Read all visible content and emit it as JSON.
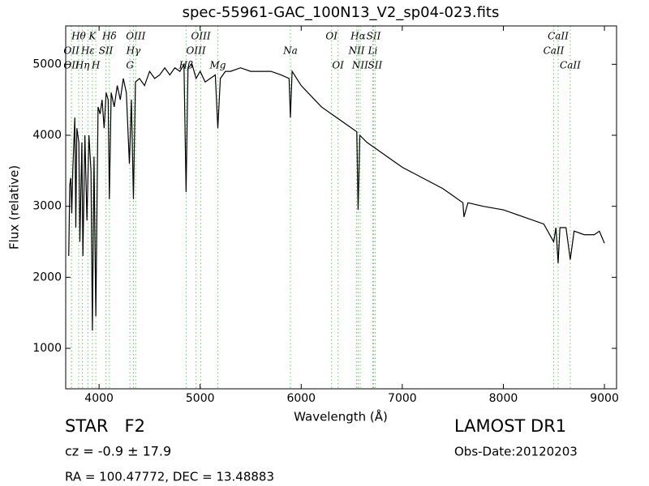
{
  "chart_data": {
    "type": "line",
    "title": "spec-55961-GAC_100N13_V2_sp04-023.fits",
    "xlabel": "Wavelength (Å)",
    "ylabel": "Flux (relative)",
    "xlim": [
      3670,
      9120
    ],
    "ylim": [
      430,
      5540
    ],
    "xticks": [
      4000,
      5000,
      6000,
      7000,
      8000,
      9000
    ],
    "yticks": [
      1000,
      2000,
      3000,
      4000,
      5000
    ],
    "grid": false,
    "x": [
      3700,
      3710,
      3720,
      3730,
      3740,
      3760,
      3770,
      3780,
      3800,
      3810,
      3830,
      3840,
      3860,
      3880,
      3900,
      3920,
      3934,
      3950,
      3968,
      3990,
      4010,
      4030,
      4050,
      4070,
      4090,
      4102,
      4120,
      4150,
      4180,
      4210,
      4240,
      4270,
      4300,
      4320,
      4340,
      4360,
      4400,
      4450,
      4500,
      4550,
      4600,
      4650,
      4700,
      4750,
      4800,
      4840,
      4861,
      4880,
      4920,
      4960,
      5000,
      5050,
      5100,
      5150,
      5175,
      5200,
      5250,
      5300,
      5400,
      5500,
      5600,
      5700,
      5800,
      5880,
      5893,
      5910,
      6000,
      6100,
      6200,
      6300,
      6400,
      6500,
      6550,
      6563,
      6580,
      6650,
      6750,
      6900,
      7000,
      7200,
      7400,
      7500,
      7600,
      7610,
      7650,
      7800,
      8000,
      8200,
      8400,
      8498,
      8520,
      8542,
      8560,
      8620,
      8662,
      8700,
      8800,
      8900,
      8950,
      9000
    ],
    "series": [
      {
        "name": "flux",
        "color": "#000000",
        "values": [
          2300,
          3300,
          3400,
          2900,
          3500,
          4250,
          2700,
          4100,
          3900,
          2500,
          3900,
          2300,
          4000,
          2800,
          4000,
          3500,
          1250,
          3700,
          1450,
          4400,
          4300,
          4500,
          4100,
          4600,
          4500,
          3100,
          4600,
          4400,
          4700,
          4500,
          4800,
          4600,
          3600,
          4500,
          3100,
          4750,
          4800,
          4700,
          4900,
          4800,
          4850,
          4950,
          4850,
          4950,
          4900,
          5000,
          3200,
          4950,
          5000,
          4800,
          4900,
          4750,
          4800,
          4850,
          4100,
          4800,
          4900,
          4900,
          4950,
          4900,
          4900,
          4900,
          4850,
          4800,
          4250,
          4900,
          4700,
          4550,
          4400,
          4300,
          4200,
          4100,
          4050,
          2950,
          4000,
          3900,
          3800,
          3650,
          3550,
          3400,
          3250,
          3150,
          3050,
          2850,
          3050,
          3000,
          2950,
          2850,
          2750,
          2500,
          2700,
          2200,
          2700,
          2700,
          2250,
          2650,
          2600,
          2600,
          2650,
          2480
        ]
      }
    ],
    "line_color": "#66cc66",
    "annotations": [
      {
        "label": "Hθ",
        "x": 3798
      },
      {
        "label": "K",
        "x": 3934
      },
      {
        "label": "Hδ",
        "x": 4102
      },
      {
        "label": "OIII",
        "x": 4363
      },
      {
        "label": "OIII",
        "x": 5007
      },
      {
        "label": "OI",
        "x": 6300
      },
      {
        "label": "Hα",
        "x": 6563
      },
      {
        "label": "SII",
        "x": 6716
      },
      {
        "label": "CaII",
        "x": 8542
      },
      {
        "label": "OII",
        "x": 3727
      },
      {
        "label": "Hε",
        "x": 3889
      },
      {
        "label": "SII",
        "x": 4068
      },
      {
        "label": "Hγ",
        "x": 4340
      },
      {
        "label": "OIII",
        "x": 4959
      },
      {
        "label": "Na",
        "x": 5893
      },
      {
        "label": "NII",
        "x": 6548
      },
      {
        "label": "Li",
        "x": 6708
      },
      {
        "label": "CaII",
        "x": 8498
      },
      {
        "label": "OII",
        "x": 3727
      },
      {
        "label": "Hη",
        "x": 3835
      },
      {
        "label": "H",
        "x": 3968
      },
      {
        "label": "G",
        "x": 4305
      },
      {
        "label": "Hβ",
        "x": 4861
      },
      {
        "label": "Mg",
        "x": 5175
      },
      {
        "label": "OI",
        "x": 6364
      },
      {
        "label": "NII",
        "x": 6583
      },
      {
        "label": "SII",
        "x": 6731
      },
      {
        "label": "CaII",
        "x": 8662
      }
    ],
    "footer": {
      "object": "STAR   F2",
      "cz": "cz = -0.9 ± 17.9",
      "coords": "RA = 100.47772, DEC = 13.48883",
      "survey": "LAMOST DR1",
      "date": "Obs-Date:20120203"
    }
  }
}
